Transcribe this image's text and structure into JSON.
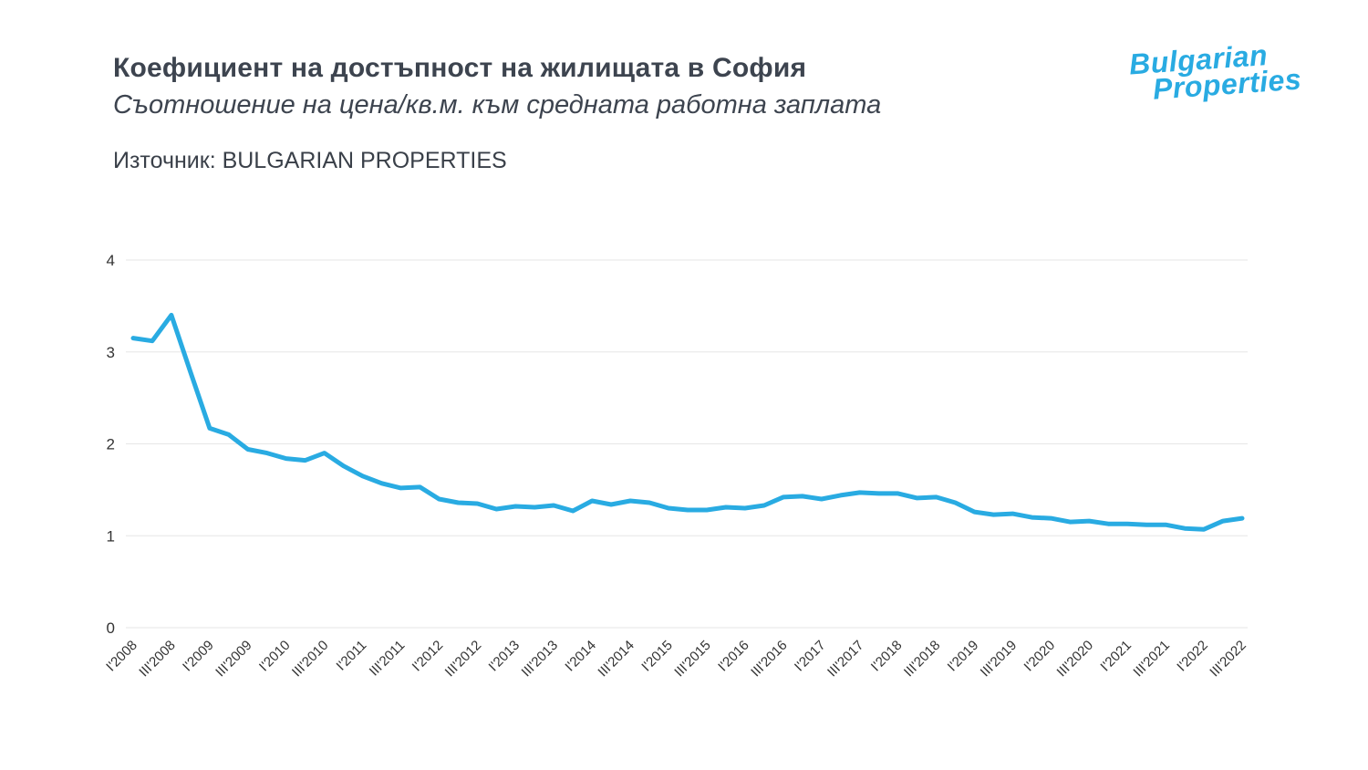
{
  "header": {
    "title": "Коефициент на достъпност на жилищата в София",
    "subtitle": "Съотношение на цена/кв.м. към средната работна заплата",
    "source": "Източник: BULGARIAN PROPERTIES"
  },
  "logo": {
    "line1": "Bulgarian",
    "line2": "Properties"
  },
  "colors": {
    "accent": "#29abe2",
    "title_text": "#3d444f",
    "grid": "#e6e6e6",
    "axis_text": "#333333"
  },
  "chart_data": {
    "type": "line",
    "title": "Коефициент на достъпност на жилищата в София",
    "subtitle": "Съотношение на цена/кв.м. към средната работна заплата",
    "source": "Източник: BULGARIAN PROPERTIES",
    "xlabel": "",
    "ylabel": "",
    "ylim": [
      0,
      4
    ],
    "y_ticks": [
      0,
      1,
      2,
      3,
      4
    ],
    "grid": true,
    "legend": "none",
    "line_color": "#29abe2",
    "labels": [
      "I'2008",
      "",
      "III'2008",
      "",
      "I'2009",
      "",
      "III'2009",
      "",
      "I'2010",
      "",
      "III'2010",
      "",
      "I'2011",
      "",
      "III'2011",
      "",
      "I'2012",
      "",
      "III'2012",
      "",
      "I'2013",
      "",
      "III'2013",
      "",
      "I'2014",
      "",
      "III'2014",
      "",
      "I'2015",
      "",
      "III'2015",
      "",
      "I'2016",
      "",
      "III'2016",
      "",
      "I'2017",
      "",
      "III'2017",
      "",
      "I'2018",
      "",
      "III'2018",
      "",
      "I'2019",
      "",
      "III'2019",
      "",
      "I'2020",
      "",
      "III'2020",
      "",
      "I'2021",
      "",
      "III'2021",
      "",
      "I'2022",
      "",
      "III'2022"
    ],
    "values": [
      3.15,
      3.12,
      3.4,
      2.78,
      2.17,
      2.1,
      1.94,
      1.9,
      1.84,
      1.82,
      1.9,
      1.76,
      1.65,
      1.57,
      1.52,
      1.53,
      1.4,
      1.36,
      1.35,
      1.29,
      1.32,
      1.31,
      1.33,
      1.27,
      1.38,
      1.34,
      1.38,
      1.36,
      1.3,
      1.28,
      1.28,
      1.31,
      1.3,
      1.33,
      1.42,
      1.43,
      1.4,
      1.44,
      1.47,
      1.46,
      1.46,
      1.41,
      1.42,
      1.36,
      1.26,
      1.23,
      1.24,
      1.2,
      1.19,
      1.15,
      1.16,
      1.13,
      1.13,
      1.12,
      1.12,
      1.08,
      1.07,
      1.16,
      1.19
    ]
  }
}
